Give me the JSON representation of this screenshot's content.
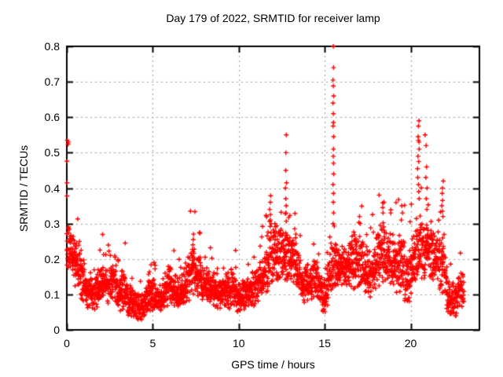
{
  "chart": {
    "title": "Day 179 of 2022, SRMTID for receiver lamp",
    "xlabel": "GPS time / hours",
    "ylabel": "SRMTID / TECUs"
  },
  "colors": {
    "marker": "#ff0000",
    "grid": "#9b9b9b",
    "border": "#000000",
    "text": "#000000",
    "background": "#ffffff"
  },
  "chart_data": {
    "type": "scatter",
    "title": "Day 179 of 2022, SRMTID for receiver lamp",
    "xlabel": "GPS time / hours",
    "ylabel": "SRMTID / TECUs",
    "xlim": [
      0,
      24
    ],
    "ylim": [
      0,
      0.8
    ],
    "xticks": [
      {
        "v": 0,
        "label": "0"
      },
      {
        "v": 5,
        "label": "5"
      },
      {
        "v": 10,
        "label": "10"
      },
      {
        "v": 15,
        "label": "15"
      },
      {
        "v": 20,
        "label": "20"
      }
    ],
    "yticks": [
      {
        "v": 0.0,
        "label": "0"
      },
      {
        "v": 0.1,
        "label": "0.1"
      },
      {
        "v": 0.2,
        "label": "0.2"
      },
      {
        "v": 0.3,
        "label": "0.3"
      },
      {
        "v": 0.4,
        "label": "0.4"
      },
      {
        "v": 0.5,
        "label": "0.5"
      },
      {
        "v": 0.6,
        "label": "0.6"
      },
      {
        "v": 0.7,
        "label": "0.7"
      },
      {
        "v": 0.8,
        "label": "0.8"
      }
    ],
    "grid": true,
    "legend": null,
    "marker": "plus",
    "marker_size_px": 7,
    "t_start": 0.0,
    "t_end": 23.1,
    "dt_hours": 0.008333,
    "seed": 20220179,
    "noise": {
      "spike_prob": 0.035,
      "spike_scale": 0.7,
      "uniform_prob": 0.3,
      "v_floor": 0.015
    },
    "envelope": [
      [
        0.0,
        0.17,
        0.3
      ],
      [
        0.3,
        0.14,
        0.28
      ],
      [
        0.6,
        0.11,
        0.25
      ],
      [
        0.9,
        0.08,
        0.22
      ],
      [
        1.2,
        0.06,
        0.16
      ],
      [
        1.5,
        0.05,
        0.14
      ],
      [
        1.8,
        0.06,
        0.16
      ],
      [
        2.1,
        0.08,
        0.2
      ],
      [
        2.4,
        0.07,
        0.17
      ],
      [
        2.7,
        0.08,
        0.23
      ],
      [
        3.0,
        0.05,
        0.15
      ],
      [
        3.3,
        0.05,
        0.19
      ],
      [
        3.6,
        0.04,
        0.13
      ],
      [
        3.9,
        0.03,
        0.12
      ],
      [
        4.2,
        0.02,
        0.1
      ],
      [
        4.5,
        0.03,
        0.12
      ],
      [
        4.8,
        0.05,
        0.15
      ],
      [
        5.1,
        0.04,
        0.14
      ],
      [
        5.4,
        0.05,
        0.13
      ],
      [
        5.7,
        0.05,
        0.14
      ],
      [
        6.0,
        0.06,
        0.2
      ],
      [
        6.3,
        0.06,
        0.16
      ],
      [
        6.6,
        0.06,
        0.15
      ],
      [
        6.9,
        0.07,
        0.18
      ],
      [
        7.2,
        0.08,
        0.24
      ],
      [
        7.5,
        0.09,
        0.24
      ],
      [
        7.8,
        0.08,
        0.21
      ],
      [
        8.1,
        0.07,
        0.17
      ],
      [
        8.4,
        0.07,
        0.18
      ],
      [
        8.7,
        0.06,
        0.15
      ],
      [
        9.0,
        0.06,
        0.14
      ],
      [
        9.3,
        0.06,
        0.17
      ],
      [
        9.6,
        0.06,
        0.18
      ],
      [
        9.9,
        0.05,
        0.15
      ],
      [
        10.2,
        0.05,
        0.14
      ],
      [
        10.5,
        0.06,
        0.15
      ],
      [
        10.8,
        0.06,
        0.17
      ],
      [
        11.1,
        0.07,
        0.18
      ],
      [
        11.4,
        0.08,
        0.22
      ],
      [
        11.7,
        0.1,
        0.28
      ],
      [
        12.0,
        0.12,
        0.32
      ],
      [
        12.3,
        0.13,
        0.3
      ],
      [
        12.6,
        0.14,
        0.3
      ],
      [
        12.9,
        0.13,
        0.28
      ],
      [
        13.2,
        0.12,
        0.27
      ],
      [
        13.5,
        0.1,
        0.22
      ],
      [
        13.8,
        0.07,
        0.18
      ],
      [
        14.1,
        0.08,
        0.2
      ],
      [
        14.4,
        0.09,
        0.21
      ],
      [
        14.7,
        0.07,
        0.18
      ],
      [
        15.0,
        0.04,
        0.14
      ],
      [
        15.3,
        0.08,
        0.22
      ],
      [
        15.6,
        0.12,
        0.26
      ],
      [
        15.9,
        0.13,
        0.25
      ],
      [
        16.2,
        0.12,
        0.24
      ],
      [
        16.5,
        0.12,
        0.26
      ],
      [
        16.8,
        0.11,
        0.28
      ],
      [
        17.1,
        0.1,
        0.26
      ],
      [
        17.4,
        0.09,
        0.24
      ],
      [
        17.7,
        0.08,
        0.22
      ],
      [
        18.0,
        0.11,
        0.26
      ],
      [
        18.3,
        0.12,
        0.3
      ],
      [
        18.6,
        0.12,
        0.28
      ],
      [
        18.9,
        0.11,
        0.25
      ],
      [
        19.2,
        0.1,
        0.27
      ],
      [
        19.5,
        0.09,
        0.28
      ],
      [
        19.8,
        0.06,
        0.21
      ],
      [
        20.1,
        0.1,
        0.26
      ],
      [
        20.4,
        0.14,
        0.33
      ],
      [
        20.7,
        0.14,
        0.32
      ],
      [
        21.0,
        0.13,
        0.3
      ],
      [
        21.3,
        0.12,
        0.28
      ],
      [
        21.6,
        0.12,
        0.29
      ],
      [
        21.9,
        0.1,
        0.28
      ],
      [
        22.1,
        0.05,
        0.18
      ],
      [
        22.3,
        0.03,
        0.13
      ],
      [
        22.6,
        0.03,
        0.14
      ],
      [
        22.85,
        0.05,
        0.18
      ],
      [
        23.1,
        0.05,
        0.15
      ]
    ],
    "spikes": [
      {
        "t": 0.05,
        "jitter": 0.05,
        "values": [
          0.535,
          0.53,
          0.524,
          0.476,
          0.415,
          0.378
        ]
      },
      {
        "t": 7.35,
        "jitter": 0.05,
        "values": [
          0.27,
          0.255,
          0.24
        ]
      },
      {
        "t": 11.85,
        "jitter": 0.05,
        "values": [
          0.36,
          0.34,
          0.325,
          0.31
        ]
      },
      {
        "t": 12.75,
        "jitter": 0.03,
        "values": [
          0.55,
          0.5,
          0.45,
          0.415,
          0.4,
          0.37,
          0.35,
          0.33
        ]
      },
      {
        "t": 13.3,
        "jitter": 0.05,
        "values": [
          0.285,
          0.27,
          0.26
        ]
      },
      {
        "t": 15.5,
        "jitter": 0.02,
        "values": [
          0.8,
          0.74,
          0.705,
          0.688,
          0.66,
          0.64,
          0.61,
          0.585,
          0.575,
          0.545,
          0.51,
          0.49,
          0.47,
          0.44,
          0.41,
          0.385,
          0.36,
          0.33,
          0.3
        ]
      },
      {
        "t": 17.05,
        "jitter": 0.06,
        "values": [
          0.32,
          0.3
        ]
      },
      {
        "t": 18.4,
        "jitter": 0.06,
        "values": [
          0.36,
          0.345,
          0.33
        ]
      },
      {
        "t": 19.5,
        "jitter": 0.06,
        "values": [
          0.35,
          0.33,
          0.31
        ]
      },
      {
        "t": 20.45,
        "jitter": 0.06,
        "values": [
          0.59,
          0.575,
          0.545,
          0.535,
          0.53,
          0.51,
          0.49,
          0.475,
          0.455,
          0.43,
          0.41,
          0.39,
          0.37
        ]
      },
      {
        "t": 20.9,
        "jitter": 0.07,
        "values": [
          0.55,
          0.52,
          0.46,
          0.43,
          0.4,
          0.37,
          0.34
        ]
      },
      {
        "t": 21.85,
        "jitter": 0.05,
        "values": [
          0.42,
          0.4,
          0.385,
          0.365,
          0.35,
          0.335,
          0.32
        ]
      }
    ]
  }
}
